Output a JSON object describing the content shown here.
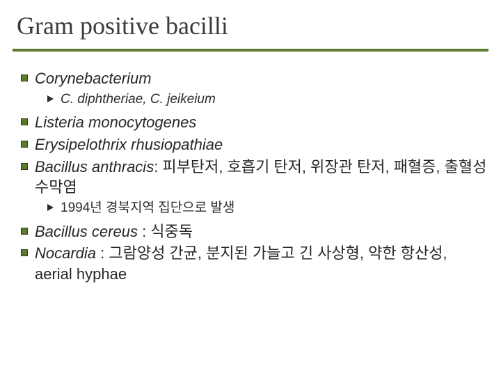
{
  "title": "Gram positive bacilli",
  "colors": {
    "accent": "#5b7a2a",
    "text": "#272727",
    "title": "#3b3b3b",
    "bg": "#ffffff"
  },
  "typography": {
    "title_fontsize_pt": 27,
    "l1_fontsize_pt": 17,
    "l2_fontsize_pt": 14,
    "title_family": "Times New Roman",
    "body_family": "Arial"
  },
  "items": [
    {
      "italic_text": "Corynebacterium",
      "plain_text": ""
    },
    null,
    {
      "italic_text": "Listeria monocytogenes",
      "plain_text": ""
    },
    {
      "italic_text": "Erysipelothrix rhusiopathiae",
      "plain_text": ""
    },
    {
      "italic_text": "Bacillus anthracis",
      "plain_text": ": 피부탄저, 호흡기 탄저, 위장관 탄저, 패혈증, 출혈성 수막염"
    },
    null,
    {
      "italic_text": "Bacillus cereus ",
      "plain_text": ": 식중독"
    },
    {
      "italic_text": "Nocardia ",
      "plain_text": ": 그람양성 간균, 분지된 가늘고 긴 사상형, 약한 항산성, aerial hyphae"
    }
  ],
  "sub1": {
    "italic_text": "C. diphtheriae, C. jeikeium",
    "plain_text": ""
  },
  "sub2": {
    "italic_text": "",
    "plain_text": "1994년 경북지역 집단으로 발생"
  }
}
